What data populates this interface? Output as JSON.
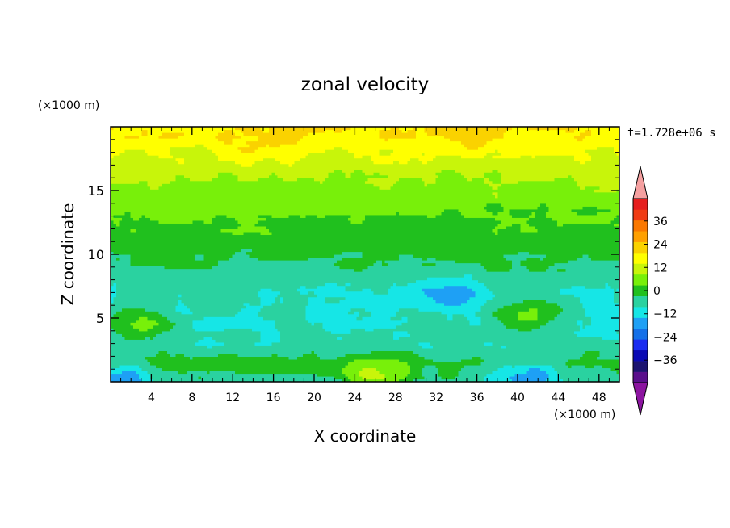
{
  "chart_data": {
    "type": "heatmap",
    "title": "zonal velocity",
    "xlabel": "X coordinate",
    "ylabel": "Z coordinate",
    "x_unit": "(×1000 m)",
    "y_unit": "(×1000 m)",
    "time_label": "t=1.728e+06 s",
    "xlim": [
      0,
      50
    ],
    "ylim": [
      0,
      20
    ],
    "x_ticks": [
      4,
      8,
      12,
      16,
      20,
      24,
      28,
      32,
      36,
      40,
      44,
      48
    ],
    "y_ticks": [
      5,
      10,
      15
    ],
    "colorbar": {
      "levels": [
        -42,
        -36,
        -30,
        -24,
        -18,
        -12,
        -6,
        0,
        6,
        12,
        18,
        24,
        30,
        36,
        42
      ],
      "labels": [
        36,
        24,
        12,
        0,
        -12,
        -24,
        -36
      ],
      "colors": [
        "#5a0f8c",
        "#1c1470",
        "#0a0ab4",
        "#1a2cf0",
        "#1470e8",
        "#1ea0f5",
        "#16e6e6",
        "#2ad2a0",
        "#20c01e",
        "#78f00a",
        "#c8f50a",
        "#ffff00",
        "#fad200",
        "#ffa000",
        "#fa7800",
        "#f03c14",
        "#e61e1e"
      ],
      "under_color": "#8c14a0",
      "over_color": "#f5a0a0",
      "extend": "both"
    },
    "features": [
      {
        "x": 35,
        "z": 19.3,
        "value": 28
      },
      {
        "x": 15,
        "z": 18.4,
        "value": 24
      },
      {
        "x": 20,
        "z": 16.5,
        "value": 14
      },
      {
        "x": 30,
        "z": 12.2,
        "value": 4
      },
      {
        "x": 24,
        "z": 6.0,
        "value": -8
      },
      {
        "x": 33,
        "z": 7.0,
        "value": -15
      },
      {
        "x": 41,
        "z": 5.2,
        "value": 8
      },
      {
        "x": 3,
        "z": 4.5,
        "value": 8
      },
      {
        "x": 26,
        "z": 0.4,
        "value": 14
      },
      {
        "x": 41,
        "z": 0.5,
        "value": -16
      },
      {
        "x": 1,
        "z": 0.3,
        "value": -15
      }
    ]
  }
}
